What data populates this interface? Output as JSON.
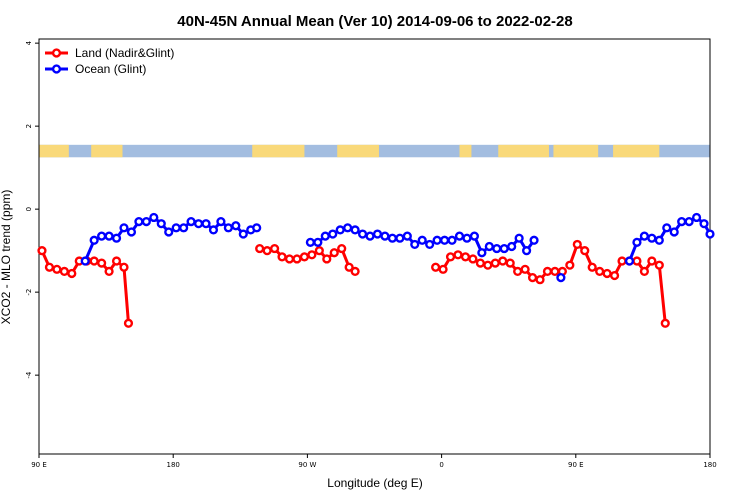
{
  "chart_data": {
    "type": "line",
    "title": "40N-45N Annual Mean (Ver 10)   2014-09-06 to 2022-02-28",
    "xlabel": "Longitude (deg E)",
    "ylabel": "XCO2 - MLO trend (ppm)",
    "xlim": [
      90,
      540
    ],
    "ylim": [
      -5.9,
      4.1
    ],
    "x_ticks": [
      {
        "value": 90,
        "label": "90 E"
      },
      {
        "value": 180,
        "label": "180"
      },
      {
        "value": 270,
        "label": "90 W"
      },
      {
        "value": 360,
        "label": "0"
      },
      {
        "value": 450,
        "label": "90 E"
      },
      {
        "value": 540,
        "label": "180"
      }
    ],
    "y_ticks": [
      {
        "value": 4,
        "label": "4"
      },
      {
        "value": 2,
        "label": "2"
      },
      {
        "value": 0,
        "label": "0"
      },
      {
        "value": -2,
        "label": "-2"
      },
      {
        "value": -4,
        "label": "-4"
      }
    ],
    "legend_position": "top-left",
    "map_strip": {
      "y_top": 1.55,
      "y_bottom": 1.25
    },
    "series": [
      {
        "name": "Land (Nadir&Glint)",
        "color": "#ff0000",
        "segments": [
          [
            [
              92,
              -1.0
            ],
            [
              97,
              -1.4
            ],
            [
              102,
              -1.45
            ],
            [
              107,
              -1.5
            ],
            [
              112,
              -1.55
            ],
            [
              117,
              -1.25
            ],
            [
              122,
              -1.25
            ],
            [
              127,
              -1.25
            ],
            [
              132,
              -1.3
            ],
            [
              137,
              -1.5
            ],
            [
              142,
              -1.25
            ],
            [
              147,
              -1.4
            ],
            [
              150,
              -2.75
            ]
          ],
          [
            [
              238,
              -0.95
            ],
            [
              243,
              -1.0
            ],
            [
              248,
              -0.95
            ],
            [
              253,
              -1.15
            ],
            [
              258,
              -1.2
            ],
            [
              263,
              -1.2
            ],
            [
              268,
              -1.15
            ],
            [
              273,
              -1.1
            ],
            [
              278,
              -1.0
            ],
            [
              283,
              -1.2
            ],
            [
              288,
              -1.05
            ],
            [
              293,
              -0.95
            ],
            [
              298,
              -1.4
            ],
            [
              302,
              -1.5
            ]
          ],
          [
            [
              356,
              -1.4
            ],
            [
              361,
              -1.45
            ],
            [
              366,
              -1.15
            ],
            [
              371,
              -1.1
            ],
            [
              376,
              -1.15
            ],
            [
              381,
              -1.2
            ],
            [
              386,
              -1.3
            ],
            [
              391,
              -1.35
            ],
            [
              396,
              -1.3
            ],
            [
              401,
              -1.25
            ],
            [
              406,
              -1.3
            ],
            [
              411,
              -1.5
            ],
            [
              416,
              -1.45
            ],
            [
              421,
              -1.65
            ],
            [
              426,
              -1.7
            ],
            [
              431,
              -1.5
            ],
            [
              436,
              -1.5
            ],
            [
              441,
              -1.5
            ]
          ],
          [
            [
              446,
              -1.35
            ],
            [
              451,
              -0.85
            ],
            [
              456,
              -1.0
            ],
            [
              461,
              -1.4
            ],
            [
              466,
              -1.5
            ],
            [
              471,
              -1.55
            ],
            [
              476,
              -1.6
            ],
            [
              481,
              -1.25
            ],
            [
              486,
              -1.25
            ],
            [
              491,
              -1.25
            ],
            [
              496,
              -1.5
            ],
            [
              501,
              -1.25
            ],
            [
              506,
              -1.35
            ],
            [
              510,
              -2.75
            ]
          ]
        ]
      },
      {
        "name": "Ocean (Glint)",
        "color": "#0000ff",
        "segments": [
          [
            [
              121,
              -1.25
            ],
            [
              127,
              -0.75
            ],
            [
              132,
              -0.65
            ],
            [
              137,
              -0.65
            ],
            [
              142,
              -0.7
            ],
            [
              147,
              -0.45
            ],
            [
              152,
              -0.55
            ],
            [
              157,
              -0.3
            ],
            [
              162,
              -0.3
            ],
            [
              167,
              -0.2
            ],
            [
              172,
              -0.35
            ],
            [
              177,
              -0.55
            ],
            [
              182,
              -0.45
            ],
            [
              187,
              -0.45
            ],
            [
              192,
              -0.3
            ],
            [
              197,
              -0.35
            ],
            [
              202,
              -0.35
            ],
            [
              207,
              -0.5
            ],
            [
              212,
              -0.3
            ],
            [
              217,
              -0.45
            ],
            [
              222,
              -0.4
            ],
            [
              227,
              -0.6
            ],
            [
              232,
              -0.5
            ],
            [
              236,
              -0.45
            ]
          ],
          [
            [
              272,
              -0.8
            ],
            [
              277,
              -0.8
            ],
            [
              282,
              -0.65
            ],
            [
              287,
              -0.6
            ],
            [
              292,
              -0.5
            ],
            [
              297,
              -0.45
            ],
            [
              302,
              -0.5
            ],
            [
              307,
              -0.6
            ],
            [
              312,
              -0.65
            ],
            [
              317,
              -0.6
            ],
            [
              322,
              -0.65
            ],
            [
              327,
              -0.7
            ],
            [
              332,
              -0.7
            ],
            [
              337,
              -0.65
            ],
            [
              342,
              -0.85
            ],
            [
              347,
              -0.75
            ],
            [
              352,
              -0.85
            ],
            [
              357,
              -0.75
            ],
            [
              362,
              -0.75
            ],
            [
              367,
              -0.75
            ],
            [
              372,
              -0.65
            ],
            [
              377,
              -0.7
            ],
            [
              382,
              -0.65
            ],
            [
              387,
              -1.05
            ],
            [
              392,
              -0.9
            ],
            [
              397,
              -0.95
            ],
            [
              402,
              -0.95
            ],
            [
              407,
              -0.9
            ],
            [
              412,
              -0.7
            ],
            [
              417,
              -1.0
            ],
            [
              422,
              -0.75
            ]
          ],
          [
            [
              440,
              -1.65
            ]
          ],
          [
            [
              486,
              -1.25
            ],
            [
              491,
              -0.8
            ],
            [
              496,
              -0.65
            ],
            [
              501,
              -0.7
            ],
            [
              506,
              -0.75
            ],
            [
              511,
              -0.45
            ],
            [
              516,
              -0.55
            ],
            [
              521,
              -0.3
            ],
            [
              526,
              -0.3
            ],
            [
              531,
              -0.2
            ],
            [
              536,
              -0.35
            ],
            [
              540,
              -0.6
            ]
          ]
        ]
      }
    ]
  }
}
